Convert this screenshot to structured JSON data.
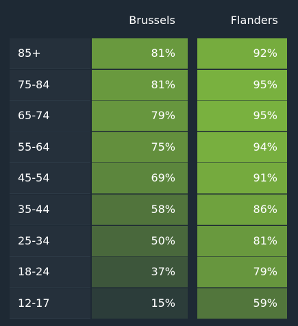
{
  "chart_data": {
    "type": "heatmap",
    "columns": [
      "Brussels",
      "Flanders"
    ],
    "rows": [
      "85+",
      "75-84",
      "65-74",
      "55-64",
      "45-54",
      "35-44",
      "25-34",
      "18-24",
      "12-17"
    ],
    "values": {
      "Brussels": [
        81,
        81,
        79,
        75,
        69,
        58,
        50,
        37,
        15
      ],
      "Flanders": [
        92,
        95,
        95,
        94,
        91,
        86,
        81,
        79,
        59
      ]
    },
    "labels": {
      "Brussels": [
        "81%",
        "81%",
        "79%",
        "75%",
        "69%",
        "58%",
        "50%",
        "37%",
        "15%"
      ],
      "Flanders": [
        "92%",
        "95%",
        "95%",
        "94%",
        "91%",
        "86%",
        "81%",
        "79%",
        "59%"
      ]
    },
    "colors": {
      "background": "#1e2934",
      "low": "#2a3a3a",
      "high": "#7fba3f"
    }
  }
}
